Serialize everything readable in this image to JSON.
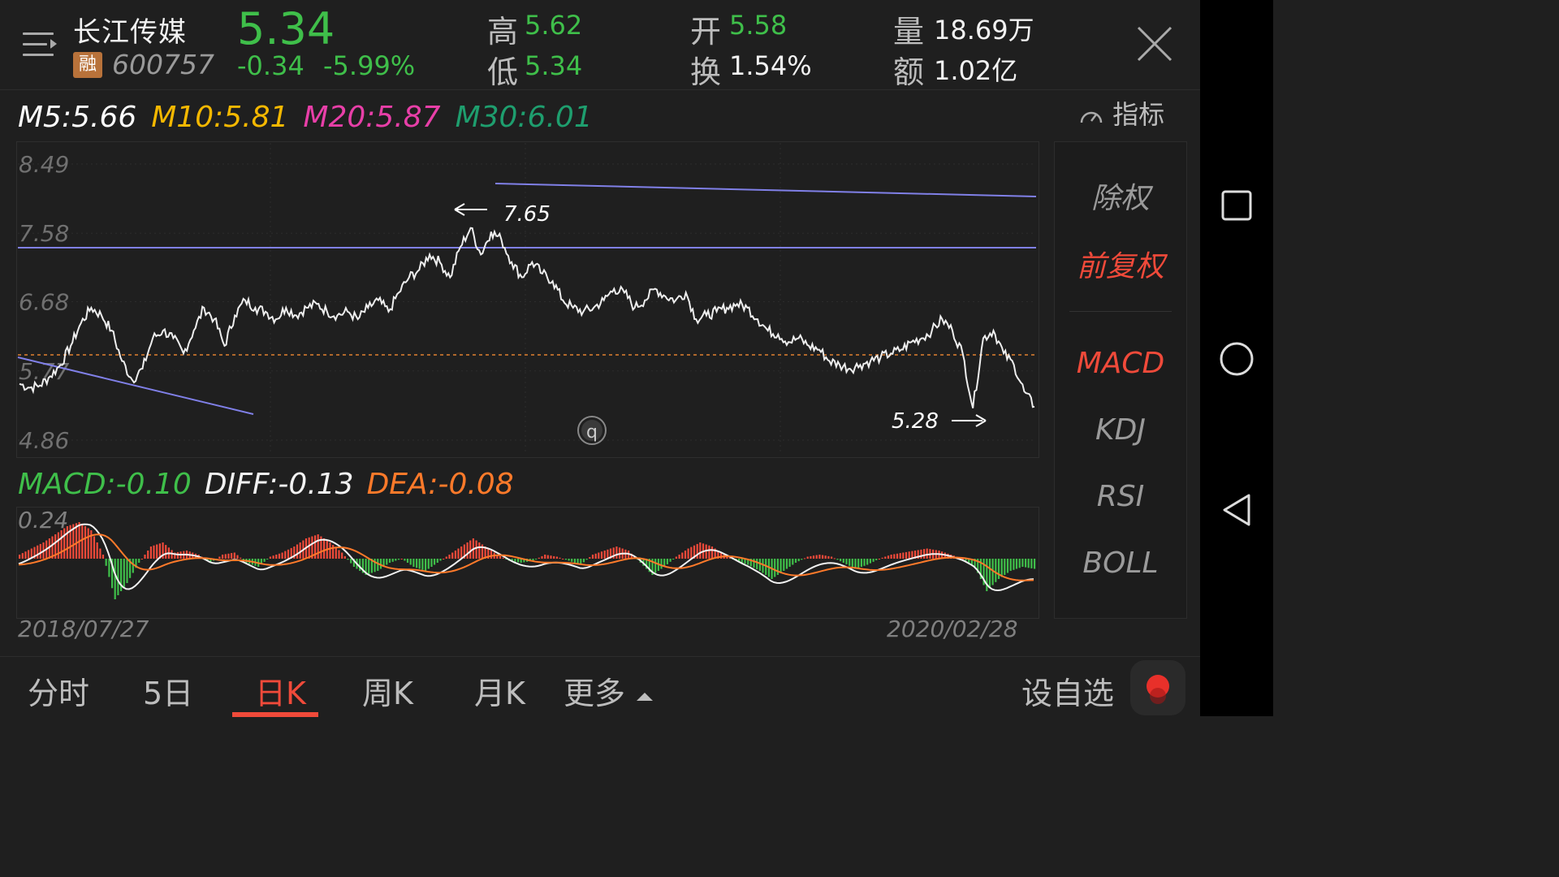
{
  "header": {
    "name": "长江传媒",
    "rong_badge": "融",
    "code": "600757",
    "price": "5.34",
    "change": "-0.34",
    "change_pct": "-5.99%",
    "high_label": "高",
    "high": "5.62",
    "low_label": "低",
    "low": "5.34",
    "open_label": "开",
    "open": "5.58",
    "turnover_label": "换",
    "turnover": "1.54%",
    "volume_label": "量",
    "volume": "18.69万",
    "amount_label": "额",
    "amount": "1.02亿"
  },
  "ma": {
    "m5": "M5:5.66",
    "m10": "M10:5.81",
    "m20": "M20:5.87",
    "m30": "M30:6.01"
  },
  "indicator_button": "指标",
  "main_axis": [
    "8.49",
    "7.58",
    "6.68",
    "5.77",
    "4.86"
  ],
  "annotations": {
    "high": "7.65",
    "low": "5.28",
    "badge": "q"
  },
  "macd_label": {
    "macd": "MACD:-0.10",
    "diff": "DIFF:-0.13",
    "dea": "DEA:-0.08"
  },
  "macd_axis_top": "0.24",
  "dates": {
    "start": "2018/07/27",
    "end": "2020/02/28"
  },
  "side_menu": [
    {
      "label": "除权",
      "active": false
    },
    {
      "label": "前复权",
      "active": true
    },
    {
      "label": "MACD",
      "active": true
    },
    {
      "label": "KDJ",
      "active": false
    },
    {
      "label": "RSI",
      "active": false
    },
    {
      "label": "BOLL",
      "active": false
    }
  ],
  "tabs": [
    {
      "label": "分时"
    },
    {
      "label": "5日"
    },
    {
      "label": "日K"
    },
    {
      "label": "周K"
    },
    {
      "label": "月K"
    },
    {
      "label": "更多"
    }
  ],
  "active_tab": "日K",
  "add_watchlist": "设自选",
  "colors": {
    "up": "#f04a3a",
    "down": "#3fbf4a",
    "m5": "#ffffff",
    "m10": "#f5b800",
    "m20": "#e83fa8",
    "m30": "#1e9e6e",
    "trendline": "#8080e8",
    "dea": "#ff7a2a"
  },
  "chart_data": [
    {
      "type": "line",
      "title": "",
      "x_range": [
        "2018/07/27",
        "2020/02/28"
      ],
      "ylim": [
        4.86,
        8.49
      ],
      "yticks": [
        8.49,
        7.58,
        6.68,
        5.77,
        4.86
      ],
      "series": [
        {
          "values": [
            5.6,
            5.55,
            5.58,
            5.7,
            5.85,
            6.1,
            6.4,
            6.6,
            6.5,
            6.3,
            5.9,
            5.65,
            5.8,
            6.2,
            6.3,
            6.2,
            6.0,
            6.3,
            6.6,
            6.45,
            6.1,
            6.5,
            6.7,
            6.6,
            6.55,
            6.45,
            6.6,
            6.5,
            6.6,
            6.65,
            6.55,
            6.5,
            6.55,
            6.45,
            6.6,
            6.7,
            6.55,
            6.8,
            7.0,
            7.1,
            7.3,
            7.2,
            7.0,
            7.4,
            7.65,
            7.3,
            7.6,
            7.5,
            7.2,
            7.0,
            7.2,
            7.05,
            6.95,
            6.7,
            6.6,
            6.55,
            6.6,
            6.7,
            6.85,
            6.8,
            6.6,
            6.7,
            6.85,
            6.75,
            6.7,
            6.8,
            6.45,
            6.5,
            6.55,
            6.6,
            6.65,
            6.6,
            6.45,
            6.3,
            6.25,
            6.15,
            6.2,
            6.1,
            6.05,
            5.9,
            5.85,
            5.8,
            5.85,
            5.9,
            5.95,
            6.0,
            6.05,
            6.15,
            6.2,
            6.3,
            6.45,
            6.3,
            6.0,
            5.28,
            6.2,
            6.3,
            6.0,
            5.85,
            5.5,
            5.3
          ]
        }
      ]
    },
    {
      "type": "bar",
      "title": "",
      "ylim": [
        -0.28,
        0.24
      ],
      "series": [
        {
          "values": [
            0.02,
            0.05,
            0.08,
            0.12,
            0.16,
            0.18,
            0.14,
            0.02,
            -0.2,
            -0.12,
            -0.02,
            0.06,
            0.08,
            0.03,
            0.04,
            0.02,
            -0.02,
            0.02,
            0.03,
            -0.02,
            -0.04,
            0.01,
            0.03,
            0.06,
            0.1,
            0.12,
            0.08,
            0.03,
            -0.04,
            -0.08,
            -0.06,
            -0.02,
            0.0,
            -0.04,
            -0.06,
            -0.02,
            0.02,
            0.06,
            0.1,
            0.06,
            0.02,
            -0.01,
            -0.02,
            -0.01,
            0.02,
            0.01,
            -0.01,
            -0.03,
            0.02,
            0.04,
            0.06,
            0.04,
            -0.02,
            -0.08,
            -0.04,
            0.01,
            0.05,
            0.08,
            0.06,
            0.02,
            -0.01,
            -0.03,
            -0.06,
            -0.1,
            -0.06,
            -0.02,
            0.01,
            0.02,
            0.01,
            -0.02,
            -0.05,
            -0.03,
            0.0,
            0.02,
            0.03,
            0.04,
            0.05,
            0.04,
            0.02,
            0.0,
            -0.04,
            -0.16,
            -0.1,
            -0.06,
            -0.04,
            -0.05
          ]
        }
      ]
    }
  ]
}
